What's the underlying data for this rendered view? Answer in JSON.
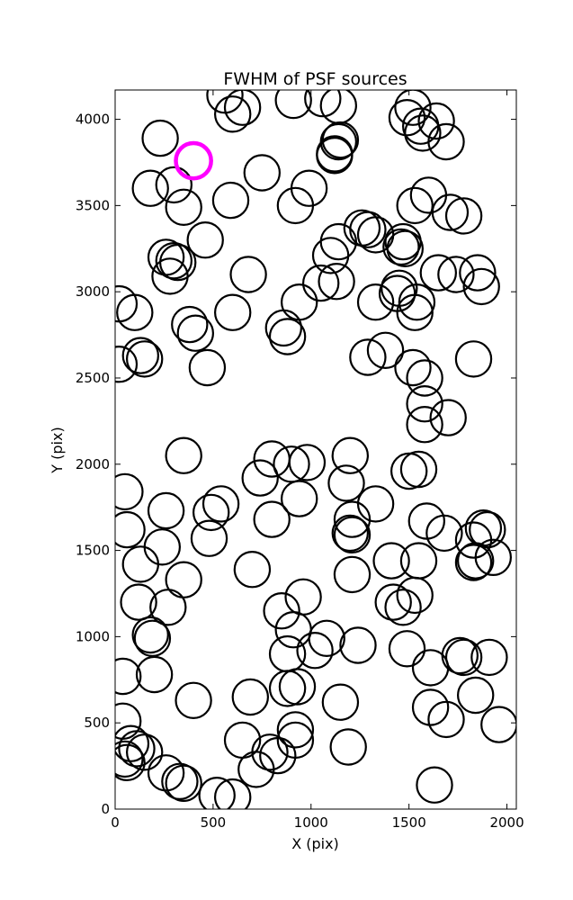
{
  "chart_data": {
    "type": "scatter",
    "title": "FWHM of PSF sources",
    "xlabel": "X (pix)",
    "ylabel": "Y (pix)",
    "xlim": [
      0,
      2048
    ],
    "ylim": [
      0,
      4170
    ],
    "xticks": [
      0,
      500,
      1000,
      1500,
      2000
    ],
    "yticks": [
      0,
      500,
      1000,
      1500,
      2000,
      2500,
      3000,
      3500,
      4000
    ],
    "marker": "open-circle",
    "marker_radius_data_units": 90,
    "grid": false,
    "legend": "none",
    "colors": {
      "default": "#000000",
      "highlight": "#ff00ff"
    },
    "highlight_source": {
      "x": 400,
      "y": 3760
    },
    "sources": [
      [
        560,
        4140
      ],
      [
        600,
        4030
      ],
      [
        650,
        4070
      ],
      [
        910,
        4110
      ],
      [
        1060,
        4120
      ],
      [
        1140,
        4080
      ],
      [
        1490,
        4010
      ],
      [
        1520,
        4070
      ],
      [
        1560,
        3960
      ],
      [
        1640,
        3990
      ],
      [
        1570,
        3920
      ],
      [
        1690,
        3870
      ],
      [
        230,
        3890
      ],
      [
        300,
        3620
      ],
      [
        180,
        3600
      ],
      [
        350,
        3490
      ],
      [
        460,
        3300
      ],
      [
        590,
        3530
      ],
      [
        750,
        3690
      ],
      [
        920,
        3500
      ],
      [
        990,
        3600
      ],
      [
        1120,
        3790
      ],
      [
        1140,
        3870
      ],
      [
        1150,
        3880
      ],
      [
        1120,
        3800
      ],
      [
        1530,
        3500
      ],
      [
        1600,
        3560
      ],
      [
        1710,
        3460
      ],
      [
        1780,
        3440
      ],
      [
        260,
        3200
      ],
      [
        300,
        3180
      ],
      [
        320,
        3170
      ],
      [
        280,
        3090
      ],
      [
        680,
        3100
      ],
      [
        1100,
        3210
      ],
      [
        1140,
        3290
      ],
      [
        1290,
        3360
      ],
      [
        1260,
        3370
      ],
      [
        1330,
        3330
      ],
      [
        1470,
        3290
      ],
      [
        1480,
        3250
      ],
      [
        1460,
        3260
      ],
      [
        1650,
        3110
      ],
      [
        1740,
        3100
      ],
      [
        1850,
        3110
      ],
      [
        1870,
        3030
      ],
      [
        1050,
        3050
      ],
      [
        1130,
        3060
      ],
      [
        1330,
        2940
      ],
      [
        1450,
        3020
      ],
      [
        1440,
        2990
      ],
      [
        1540,
        2940
      ],
      [
        1530,
        2880
      ],
      [
        20,
        2930
      ],
      [
        100,
        2880
      ],
      [
        380,
        2810
      ],
      [
        410,
        2760
      ],
      [
        600,
        2880
      ],
      [
        860,
        2790
      ],
      [
        880,
        2740
      ],
      [
        940,
        2940
      ],
      [
        20,
        2580
      ],
      [
        130,
        2630
      ],
      [
        150,
        2610
      ],
      [
        470,
        2560
      ],
      [
        1290,
        2620
      ],
      [
        1380,
        2660
      ],
      [
        1520,
        2560
      ],
      [
        1580,
        2500
      ],
      [
        1580,
        2350
      ],
      [
        1580,
        2230
      ],
      [
        1700,
        2270
      ],
      [
        1830,
        2610
      ],
      [
        350,
        2050
      ],
      [
        740,
        1920
      ],
      [
        800,
        2030
      ],
      [
        900,
        2000
      ],
      [
        980,
        2010
      ],
      [
        1200,
        2050
      ],
      [
        1180,
        1890
      ],
      [
        1500,
        1960
      ],
      [
        1550,
        1970
      ],
      [
        50,
        1840
      ],
      [
        60,
        1620
      ],
      [
        260,
        1730
      ],
      [
        490,
        1720
      ],
      [
        540,
        1770
      ],
      [
        800,
        1680
      ],
      [
        940,
        1800
      ],
      [
        1330,
        1770
      ],
      [
        1210,
        1680
      ],
      [
        1200,
        1600
      ],
      [
        1210,
        1590
      ],
      [
        1410,
        1440
      ],
      [
        1550,
        1440
      ],
      [
        1590,
        1670
      ],
      [
        1680,
        1600
      ],
      [
        1830,
        1560
      ],
      [
        1880,
        1630
      ],
      [
        1900,
        1620
      ],
      [
        1930,
        1460
      ],
      [
        1840,
        1440
      ],
      [
        1830,
        1430
      ],
      [
        240,
        1520
      ],
      [
        130,
        1420
      ],
      [
        480,
        1570
      ],
      [
        700,
        1390
      ],
      [
        350,
        1330
      ],
      [
        1210,
        1360
      ],
      [
        120,
        1200
      ],
      [
        270,
        1170
      ],
      [
        180,
        1010
      ],
      [
        190,
        990
      ],
      [
        200,
        780
      ],
      [
        850,
        1150
      ],
      [
        910,
        1040
      ],
      [
        960,
        1230
      ],
      [
        880,
        900
      ],
      [
        1020,
        920
      ],
      [
        1080,
        990
      ],
      [
        1240,
        950
      ],
      [
        1420,
        1200
      ],
      [
        1470,
        1170
      ],
      [
        1530,
        1240
      ],
      [
        1490,
        930
      ],
      [
        1610,
        820
      ],
      [
        1760,
        890
      ],
      [
        1780,
        880
      ],
      [
        1910,
        880
      ],
      [
        40,
        770
      ],
      [
        400,
        630
      ],
      [
        690,
        650
      ],
      [
        880,
        700
      ],
      [
        930,
        710
      ],
      [
        1150,
        620
      ],
      [
        1610,
        590
      ],
      [
        1690,
        520
      ],
      [
        1840,
        660
      ],
      [
        1960,
        490
      ],
      [
        40,
        510
      ],
      [
        80,
        380
      ],
      [
        110,
        350
      ],
      [
        150,
        330
      ],
      [
        50,
        290
      ],
      [
        60,
        270
      ],
      [
        260,
        210
      ],
      [
        330,
        160
      ],
      [
        350,
        150
      ],
      [
        650,
        400
      ],
      [
        720,
        230
      ],
      [
        790,
        330
      ],
      [
        830,
        310
      ],
      [
        920,
        460
      ],
      [
        920,
        400
      ],
      [
        1190,
        360
      ],
      [
        520,
        80
      ],
      [
        600,
        70
      ],
      [
        1630,
        140
      ]
    ]
  }
}
